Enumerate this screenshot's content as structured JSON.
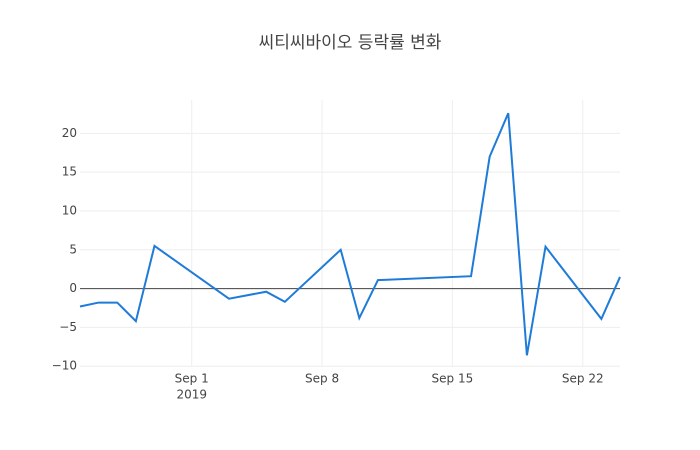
{
  "chart_data": {
    "type": "line",
    "title": "씨티씨바이오 등락률 변화",
    "x": [
      "2019-08-26",
      "2019-08-27",
      "2019-08-28",
      "2019-08-29",
      "2019-08-30",
      "2019-09-03",
      "2019-09-05",
      "2019-09-06",
      "2019-09-09",
      "2019-09-10",
      "2019-09-11",
      "2019-09-16",
      "2019-09-17",
      "2019-09-18",
      "2019-09-19",
      "2019-09-20",
      "2019-09-23",
      "2019-09-24"
    ],
    "series": [
      {
        "color": "#1f7bd8",
        "values": [
          -2.3,
          -1.8,
          -1.8,
          -4.2,
          5.5,
          -1.3,
          -0.4,
          -1.7,
          5.0,
          -3.8,
          1.1,
          1.6,
          17.0,
          22.6,
          -8.6,
          5.4,
          -3.9,
          1.5
        ]
      }
    ],
    "xlim": [
      "2019-08-26",
      "2019-09-24"
    ],
    "xticks": [
      {
        "value": "2019-09-01",
        "label": "Sep 1"
      },
      {
        "value": "2019-09-08",
        "label": "Sep 8"
      },
      {
        "value": "2019-09-15",
        "label": "Sep 15"
      },
      {
        "value": "2019-09-22",
        "label": "Sep 22"
      }
    ],
    "xtick_year_label": "2019",
    "ylim": [
      -10.1,
      24.3
    ],
    "yticks": [
      {
        "value": -10,
        "label": "−10"
      },
      {
        "value": -5,
        "label": "−5"
      },
      0,
      5,
      10,
      15,
      20
    ],
    "grid": true,
    "zeroline": true
  }
}
